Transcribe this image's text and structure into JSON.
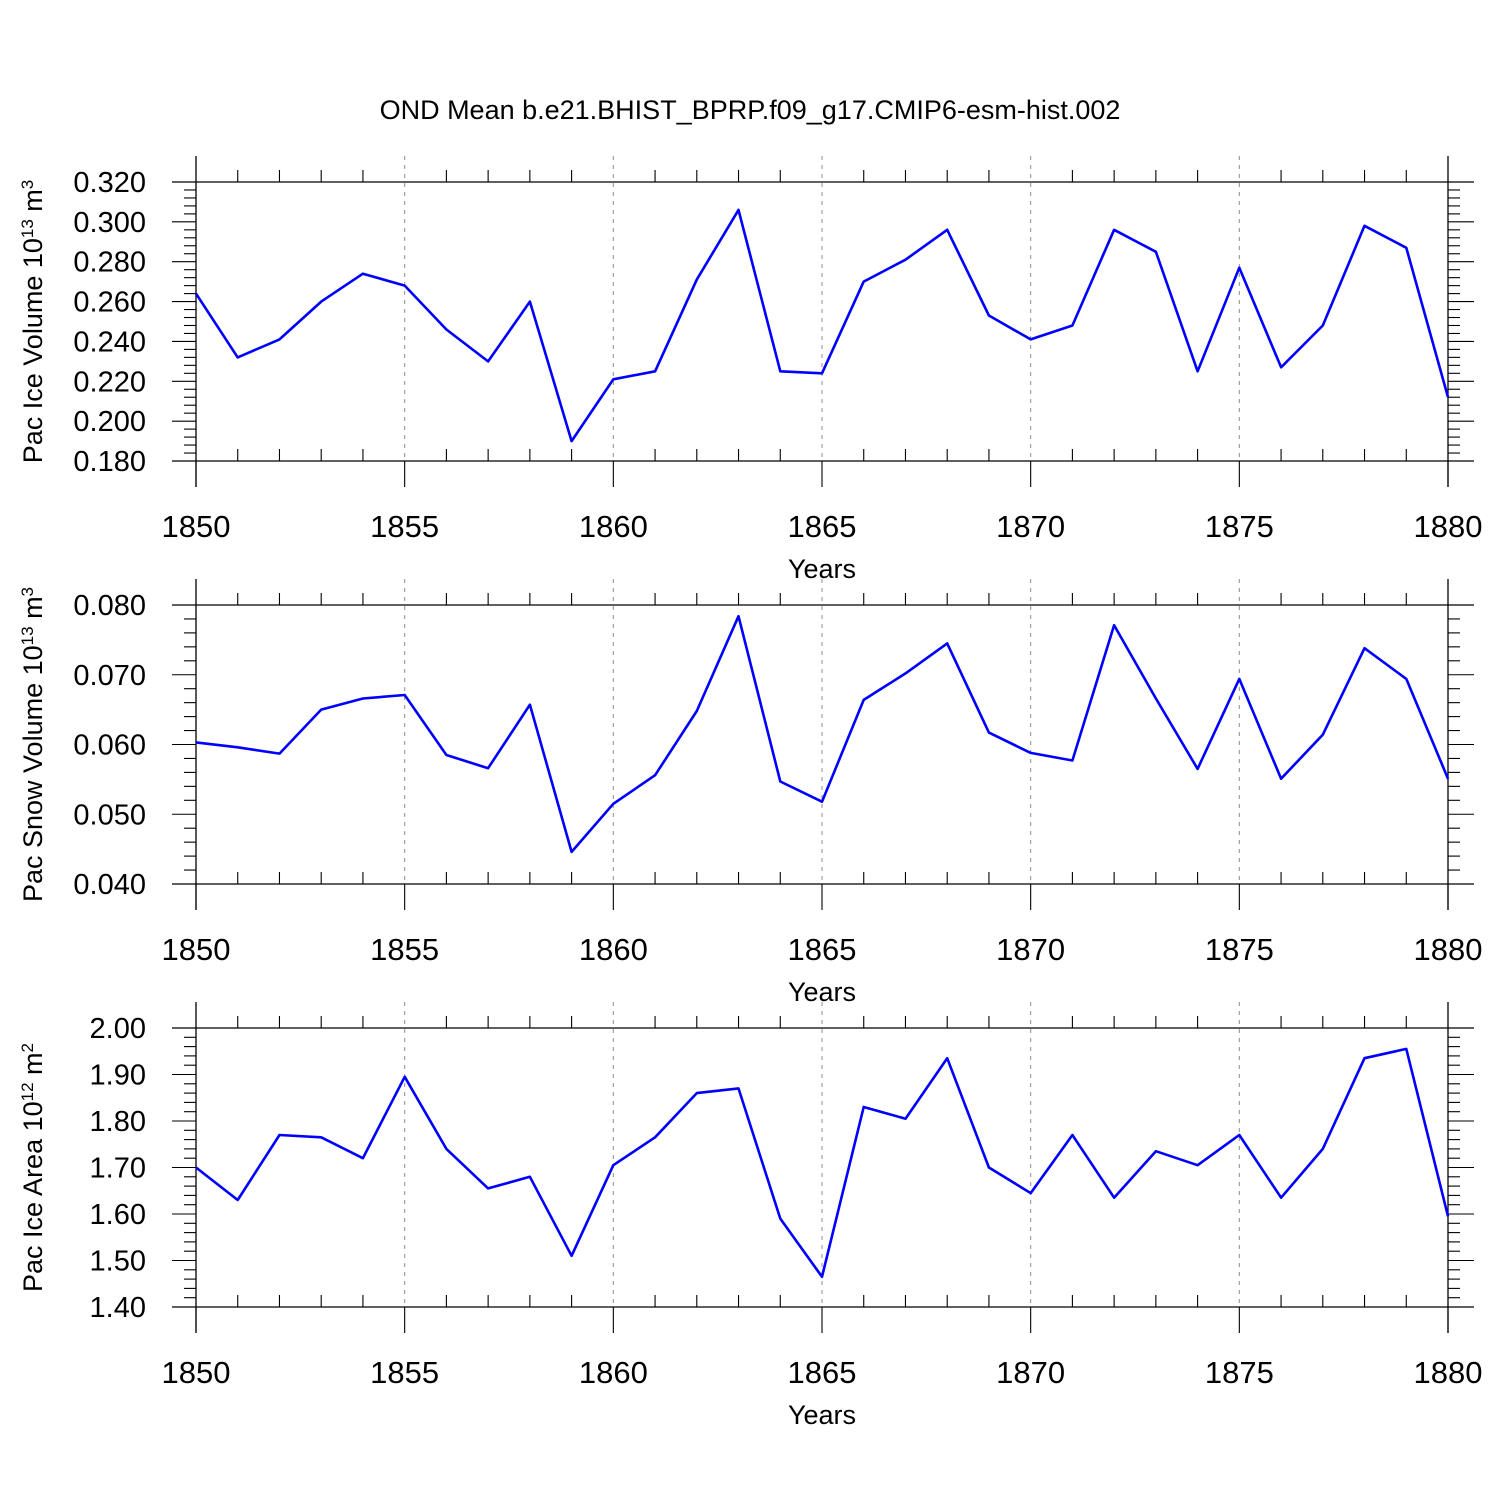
{
  "figure": {
    "title": "OND Mean b.e21.BHIST_BPRP.f09_g17.CMIP6-esm-hist.002",
    "line_color": "#0000ff"
  },
  "chart_data": [
    {
      "type": "line",
      "ylabel": "Pac Ice Volume 10",
      "ylabel_exp": "13",
      "ylabel_unit": " m",
      "ylabel_unit_exp": "3",
      "xlabel": "Years",
      "xlim": [
        1850,
        1880
      ],
      "ylim": [
        0.18,
        0.32
      ],
      "yticks": [
        "0.320",
        "0.300",
        "0.280",
        "0.260",
        "0.240",
        "0.220",
        "0.200",
        "0.180"
      ],
      "ytick_values": [
        0.32,
        0.3,
        0.28,
        0.26,
        0.24,
        0.22,
        0.2,
        0.18
      ],
      "xticks": [
        "1850",
        "1855",
        "1860",
        "1865",
        "1870",
        "1875",
        "1880"
      ],
      "xtick_values": [
        1850,
        1855,
        1860,
        1865,
        1870,
        1875,
        1880
      ],
      "grid": "vertical-dashed",
      "series": [
        {
          "name": "Pac Ice Volume",
          "x": [
            1850,
            1851,
            1852,
            1853,
            1854,
            1855,
            1856,
            1857,
            1858,
            1859,
            1860,
            1861,
            1862,
            1863,
            1864,
            1865,
            1866,
            1867,
            1868,
            1869,
            1870,
            1871,
            1872,
            1873,
            1874,
            1875,
            1876,
            1877,
            1878,
            1879,
            1880
          ],
          "values": [
            0.264,
            0.232,
            0.241,
            0.26,
            0.274,
            0.268,
            0.246,
            0.23,
            0.26,
            0.19,
            0.221,
            0.225,
            0.271,
            0.306,
            0.225,
            0.224,
            0.27,
            0.281,
            0.296,
            0.253,
            0.241,
            0.248,
            0.296,
            0.285,
            0.225,
            0.277,
            0.227,
            0.248,
            0.298,
            0.287,
            0.212
          ]
        }
      ]
    },
    {
      "type": "line",
      "ylabel": "Pac Snow Volume 10",
      "ylabel_exp": "13",
      "ylabel_unit": " m",
      "ylabel_unit_exp": "3",
      "xlabel": "Years",
      "xlim": [
        1850,
        1880
      ],
      "ylim": [
        0.04,
        0.08
      ],
      "yticks": [
        "0.080",
        "0.070",
        "0.060",
        "0.050",
        "0.040"
      ],
      "ytick_values": [
        0.08,
        0.07,
        0.06,
        0.05,
        0.04
      ],
      "xticks": [
        "1850",
        "1855",
        "1860",
        "1865",
        "1870",
        "1875",
        "1880"
      ],
      "xtick_values": [
        1850,
        1855,
        1860,
        1865,
        1870,
        1875,
        1880
      ],
      "grid": "vertical-dashed",
      "series": [
        {
          "name": "Pac Snow Volume",
          "x": [
            1850,
            1851,
            1852,
            1853,
            1854,
            1855,
            1856,
            1857,
            1858,
            1859,
            1860,
            1861,
            1862,
            1863,
            1864,
            1865,
            1866,
            1867,
            1868,
            1869,
            1870,
            1871,
            1872,
            1873,
            1874,
            1875,
            1876,
            1877,
            1878,
            1879,
            1880
          ],
          "values": [
            0.0603,
            0.0596,
            0.0587,
            0.065,
            0.0666,
            0.0671,
            0.0585,
            0.0566,
            0.0657,
            0.0446,
            0.0515,
            0.0556,
            0.0648,
            0.0784,
            0.0547,
            0.0518,
            0.0664,
            0.0702,
            0.0745,
            0.0617,
            0.0588,
            0.0577,
            0.0771,
            0.0666,
            0.0565,
            0.0694,
            0.0551,
            0.0614,
            0.0738,
            0.0694,
            0.0551
          ]
        }
      ]
    },
    {
      "type": "line",
      "ylabel": "Pac Ice Area 10",
      "ylabel_exp": "12",
      "ylabel_unit": " m",
      "ylabel_unit_exp": "2",
      "xlabel": "Years",
      "xlim": [
        1850,
        1880
      ],
      "ylim": [
        1.4,
        2.0
      ],
      "yticks": [
        "2.00",
        "1.90",
        "1.80",
        "1.70",
        "1.60",
        "1.50",
        "1.40"
      ],
      "ytick_values": [
        2.0,
        1.9,
        1.8,
        1.7,
        1.6,
        1.5,
        1.4
      ],
      "xticks": [
        "1850",
        "1855",
        "1860",
        "1865",
        "1870",
        "1875",
        "1880"
      ],
      "xtick_values": [
        1850,
        1855,
        1860,
        1865,
        1870,
        1875,
        1880
      ],
      "grid": "vertical-dashed",
      "series": [
        {
          "name": "Pac Ice Area",
          "x": [
            1850,
            1851,
            1852,
            1853,
            1854,
            1855,
            1856,
            1857,
            1858,
            1859,
            1860,
            1861,
            1862,
            1863,
            1864,
            1865,
            1866,
            1867,
            1868,
            1869,
            1870,
            1871,
            1872,
            1873,
            1874,
            1875,
            1876,
            1877,
            1878,
            1879,
            1880
          ],
          "values": [
            1.7,
            1.63,
            1.77,
            1.765,
            1.72,
            1.895,
            1.74,
            1.655,
            1.68,
            1.51,
            1.705,
            1.765,
            1.86,
            1.87,
            1.59,
            1.465,
            1.83,
            1.805,
            1.935,
            1.7,
            1.645,
            1.77,
            1.635,
            1.735,
            1.705,
            1.77,
            1.635,
            1.74,
            1.935,
            1.955,
            1.595
          ]
        }
      ]
    }
  ]
}
